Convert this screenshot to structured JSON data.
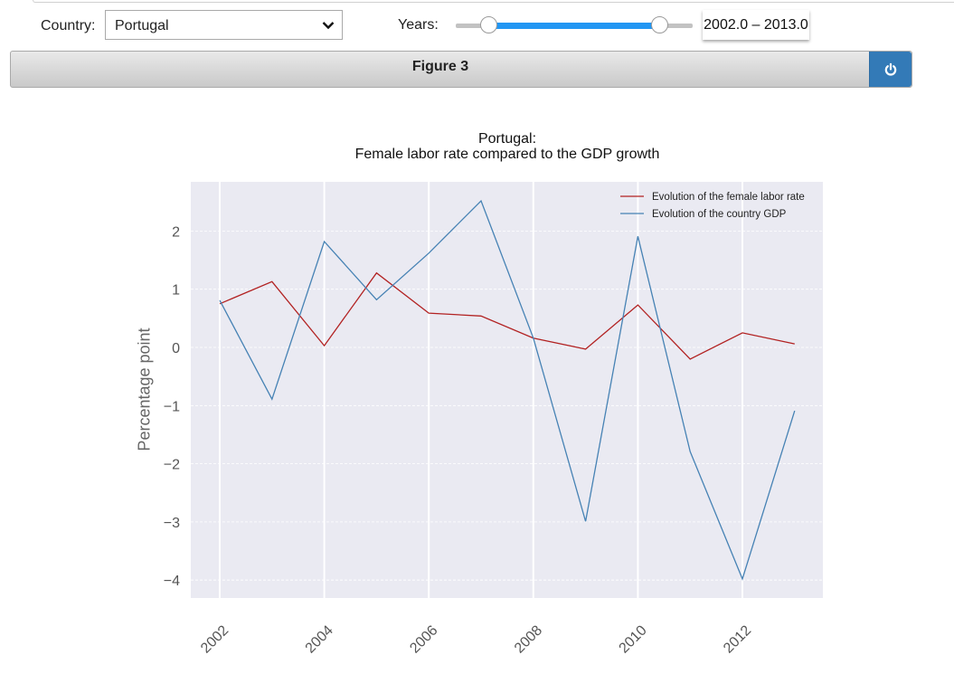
{
  "controls": {
    "country_label": "Country:",
    "country_value": "Portugal",
    "years_label": "Years:",
    "years_range": {
      "min": 2002.0,
      "max": 2013.0
    },
    "years_readout": "2002.0 – 2013.0"
  },
  "figure_bar": {
    "title": "Figure 3",
    "power_icon": "power-icon",
    "accent_color": "#337ab7"
  },
  "chart": {
    "title_line1": "Portugal:",
    "title_line2": "Female labor rate compared to the GDP growth",
    "ylabel": "Percentage point"
  },
  "chart_data": {
    "type": "line",
    "title": "Portugal: Female labor rate compared to the GDP growth",
    "xlabel": "",
    "ylabel": "Percentage point",
    "x": [
      2002,
      2003,
      2004,
      2005,
      2006,
      2007,
      2008,
      2009,
      2010,
      2011,
      2012,
      2013
    ],
    "series": [
      {
        "name": "Evolution of the female labor rate",
        "color": "#b22222",
        "values": [
          0.75,
          1.13,
          0.03,
          1.28,
          0.59,
          0.54,
          0.16,
          -0.03,
          0.73,
          -0.2,
          0.25,
          0.06
        ]
      },
      {
        "name": "Evolution of the country GDP",
        "color": "#4682b4",
        "values": [
          0.81,
          -0.89,
          1.82,
          0.82,
          1.62,
          2.52,
          0.16,
          -2.99,
          1.91,
          -1.79,
          -3.98,
          -1.09
        ]
      }
    ],
    "xticks": [
      "2002",
      "2004",
      "2006",
      "2008",
      "2010",
      "2012"
    ],
    "yticks": [
      "2",
      "1",
      "0",
      "−1",
      "−2",
      "−3",
      "−4"
    ],
    "ylim": [
      -4.3,
      2.85
    ],
    "xlim": [
      2001.45,
      2013.55
    ],
    "grid": true,
    "legend_position": "upper right"
  }
}
